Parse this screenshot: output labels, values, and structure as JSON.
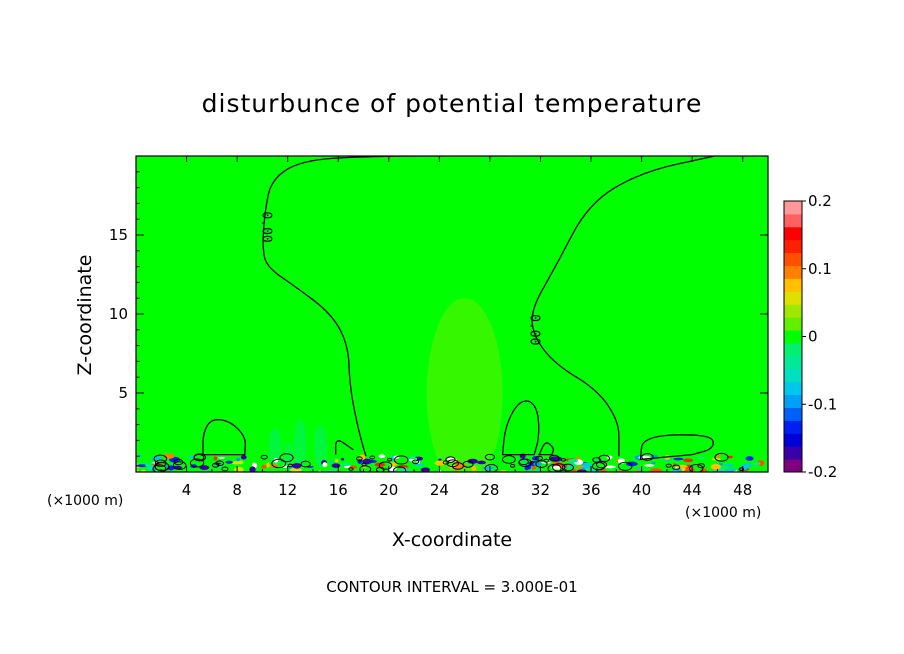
{
  "chart_data": {
    "type": "heatmap",
    "title": "disturbunce of potential temperature",
    "xlabel": "X-coordinate",
    "ylabel": "Z-coordinate",
    "x_unit_left": "(×1000 m)",
    "x_unit_right": "(×1000 m)",
    "xlim": [
      0,
      50
    ],
    "ylim": [
      0,
      20
    ],
    "x_ticks": [
      4,
      8,
      12,
      16,
      20,
      24,
      28,
      32,
      36,
      40,
      44,
      48
    ],
    "y_ticks": [
      5,
      10,
      15
    ],
    "colorbar": {
      "range": [
        -0.2,
        0.2
      ],
      "labels": [
        "0.2",
        "0.1",
        "0",
        "-0.1",
        "-0.2"
      ],
      "label_values": [
        0.2,
        0.1,
        0,
        -0.1,
        -0.2
      ],
      "colors": [
        "#800080",
        "#3a00a8",
        "#0000d8",
        "#0020f0",
        "#0060f8",
        "#00a0f8",
        "#00c8e8",
        "#00e0c0",
        "#00e898",
        "#00f070",
        "#00ff00",
        "#60f000",
        "#a0e800",
        "#e0e000",
        "#ffc000",
        "#ff8000",
        "#ff5000",
        "#ff2000",
        "#ff0000",
        "#ff6060",
        "#ff9898"
      ]
    },
    "contour_interval_text": "CONTOUR INTERVAL = 3.000E-01",
    "contour_labels": [
      {
        "text": "0.00",
        "x": 10.0,
        "y": 15.5
      },
      {
        "text": "0.00",
        "x": 31.2,
        "y": 9.0
      }
    ],
    "contours": [
      {
        "level": 0.0,
        "points": [
          [
            45.8,
            20
          ],
          [
            40,
            19
          ],
          [
            35.8,
            17
          ],
          [
            33.2,
            13
          ],
          [
            31.2,
            10.2
          ],
          [
            31.5,
            8.5
          ],
          [
            33.2,
            6.8
          ],
          [
            36.5,
            5.2
          ],
          [
            38.2,
            3.2
          ],
          [
            38.2,
            1.5
          ],
          [
            38.2,
            1.0
          ]
        ]
      },
      {
        "level": 0.0,
        "points": [
          [
            29.5,
            20
          ],
          [
            18,
            20
          ],
          [
            13,
            19.7
          ],
          [
            10.7,
            18.5
          ],
          [
            10.2,
            16.5
          ],
          [
            10.0,
            14.3
          ],
          [
            10.3,
            13.0
          ],
          [
            12.5,
            11.8
          ],
          [
            15.5,
            10.0
          ],
          [
            16.8,
            8.0
          ],
          [
            16.9,
            5.5
          ],
          [
            17.5,
            3.0
          ],
          [
            18.0,
            1.5
          ],
          [
            18.2,
            1.0
          ]
        ]
      },
      {
        "level": 0.0,
        "closed": true,
        "points": [
          [
            5.3,
            1.1
          ],
          [
            5.3,
            2.5
          ],
          [
            6.0,
            3.4
          ],
          [
            7.5,
            3.2
          ],
          [
            8.7,
            2.2
          ],
          [
            8.6,
            1.1
          ]
        ]
      },
      {
        "level": 0.0,
        "closed": true,
        "points": [
          [
            29.0,
            1.1
          ],
          [
            29.2,
            2.8
          ],
          [
            30.1,
            4.3
          ],
          [
            31.1,
            4.6
          ],
          [
            31.8,
            3.9
          ],
          [
            31.9,
            2.2
          ],
          [
            31.5,
            1.1
          ]
        ]
      },
      {
        "level": 0.0,
        "closed": true,
        "points": [
          [
            31.9,
            1.1
          ],
          [
            32.4,
            2.0
          ],
          [
            33.1,
            1.5
          ],
          [
            32.9,
            1.1
          ]
        ]
      },
      {
        "level": 0.0,
        "closed": true,
        "points": [
          [
            39.9,
            0.8
          ],
          [
            40.1,
            2.3
          ],
          [
            45.5,
            2.4
          ],
          [
            45.8,
            1.5
          ],
          [
            44.0,
            1.1
          ]
        ]
      },
      {
        "level": 0.0,
        "points": [
          [
            15.8,
            1.1
          ],
          [
            15.8,
            2.2
          ],
          [
            17.2,
            1.4
          ]
        ]
      }
    ],
    "fill_patches": [
      {
        "value": -0.02,
        "ellipse": [
          11.0,
          1.5,
          0.5,
          1.3
        ]
      },
      {
        "value": -0.02,
        "ellipse": [
          13.0,
          1.7,
          0.5,
          1.6
        ]
      },
      {
        "value": -0.02,
        "ellipse": [
          14.6,
          1.6,
          0.5,
          1.4
        ]
      },
      {
        "value": -0.01,
        "ellipse": [
          12.1,
          1.0,
          0.4,
          0.8
        ]
      },
      {
        "value": 0.01,
        "ellipse": [
          26.0,
          5.0,
          3.0,
          6.0
        ]
      }
    ],
    "background_value": 0.0,
    "surface_noise_band": [
      0,
      1.2
    ]
  }
}
